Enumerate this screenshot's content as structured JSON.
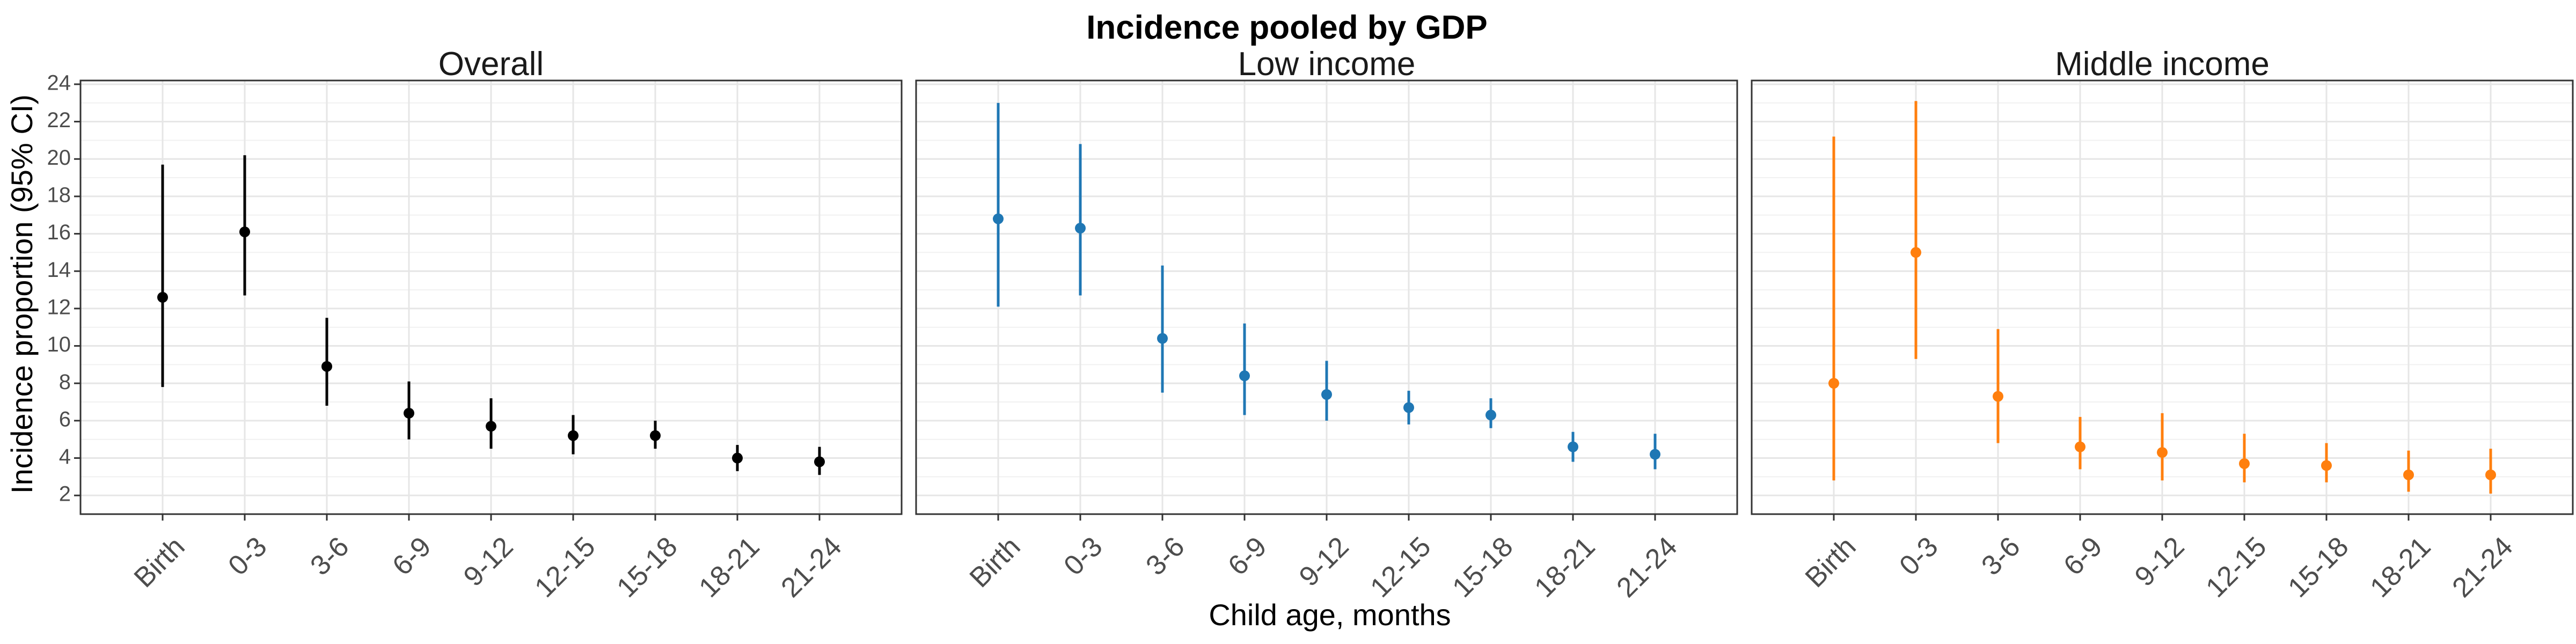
{
  "chart_data": {
    "type": "scatter",
    "title": "Incidence pooled by GDP",
    "xlabel": "Child age, months",
    "ylabel": "Incidence proportion (95% CI)",
    "categories": [
      "Birth",
      "0-3",
      "3-6",
      "6-9",
      "9-12",
      "12-15",
      "15-18",
      "18-21",
      "21-24"
    ],
    "yticks": [
      2,
      4,
      6,
      8,
      10,
      12,
      14,
      16,
      18,
      20,
      22,
      24
    ],
    "ylim": [
      1,
      24.2
    ],
    "grid": true,
    "legend": "none",
    "panels": [
      {
        "name": "Overall",
        "color": "#000000",
        "values": [
          12.6,
          16.1,
          8.9,
          6.4,
          5.7,
          5.2,
          5.2,
          4.0,
          3.8
        ],
        "lower": [
          7.8,
          12.7,
          6.8,
          5.0,
          4.5,
          4.2,
          4.5,
          3.3,
          3.1
        ],
        "upper": [
          19.7,
          20.2,
          11.5,
          8.1,
          7.2,
          6.3,
          6.0,
          4.7,
          4.6
        ]
      },
      {
        "name": "Low income",
        "color": "#1f77b4",
        "values": [
          16.8,
          16.3,
          10.4,
          8.4,
          7.4,
          6.7,
          6.3,
          4.6,
          4.2
        ],
        "lower": [
          12.1,
          12.7,
          7.5,
          6.3,
          6.0,
          5.8,
          5.6,
          3.8,
          3.4
        ],
        "upper": [
          23.0,
          20.8,
          14.3,
          11.2,
          9.2,
          7.6,
          7.2,
          5.4,
          5.3
        ]
      },
      {
        "name": "Middle income",
        "color": "#ff7f0e",
        "values": [
          8.0,
          15.0,
          7.3,
          4.6,
          4.3,
          3.7,
          3.6,
          3.1,
          3.1
        ],
        "lower": [
          2.8,
          9.3,
          4.8,
          3.4,
          2.8,
          2.7,
          2.7,
          2.2,
          2.1
        ],
        "upper": [
          21.2,
          23.1,
          10.9,
          6.2,
          6.4,
          5.3,
          4.8,
          4.4,
          4.5
        ]
      }
    ]
  }
}
